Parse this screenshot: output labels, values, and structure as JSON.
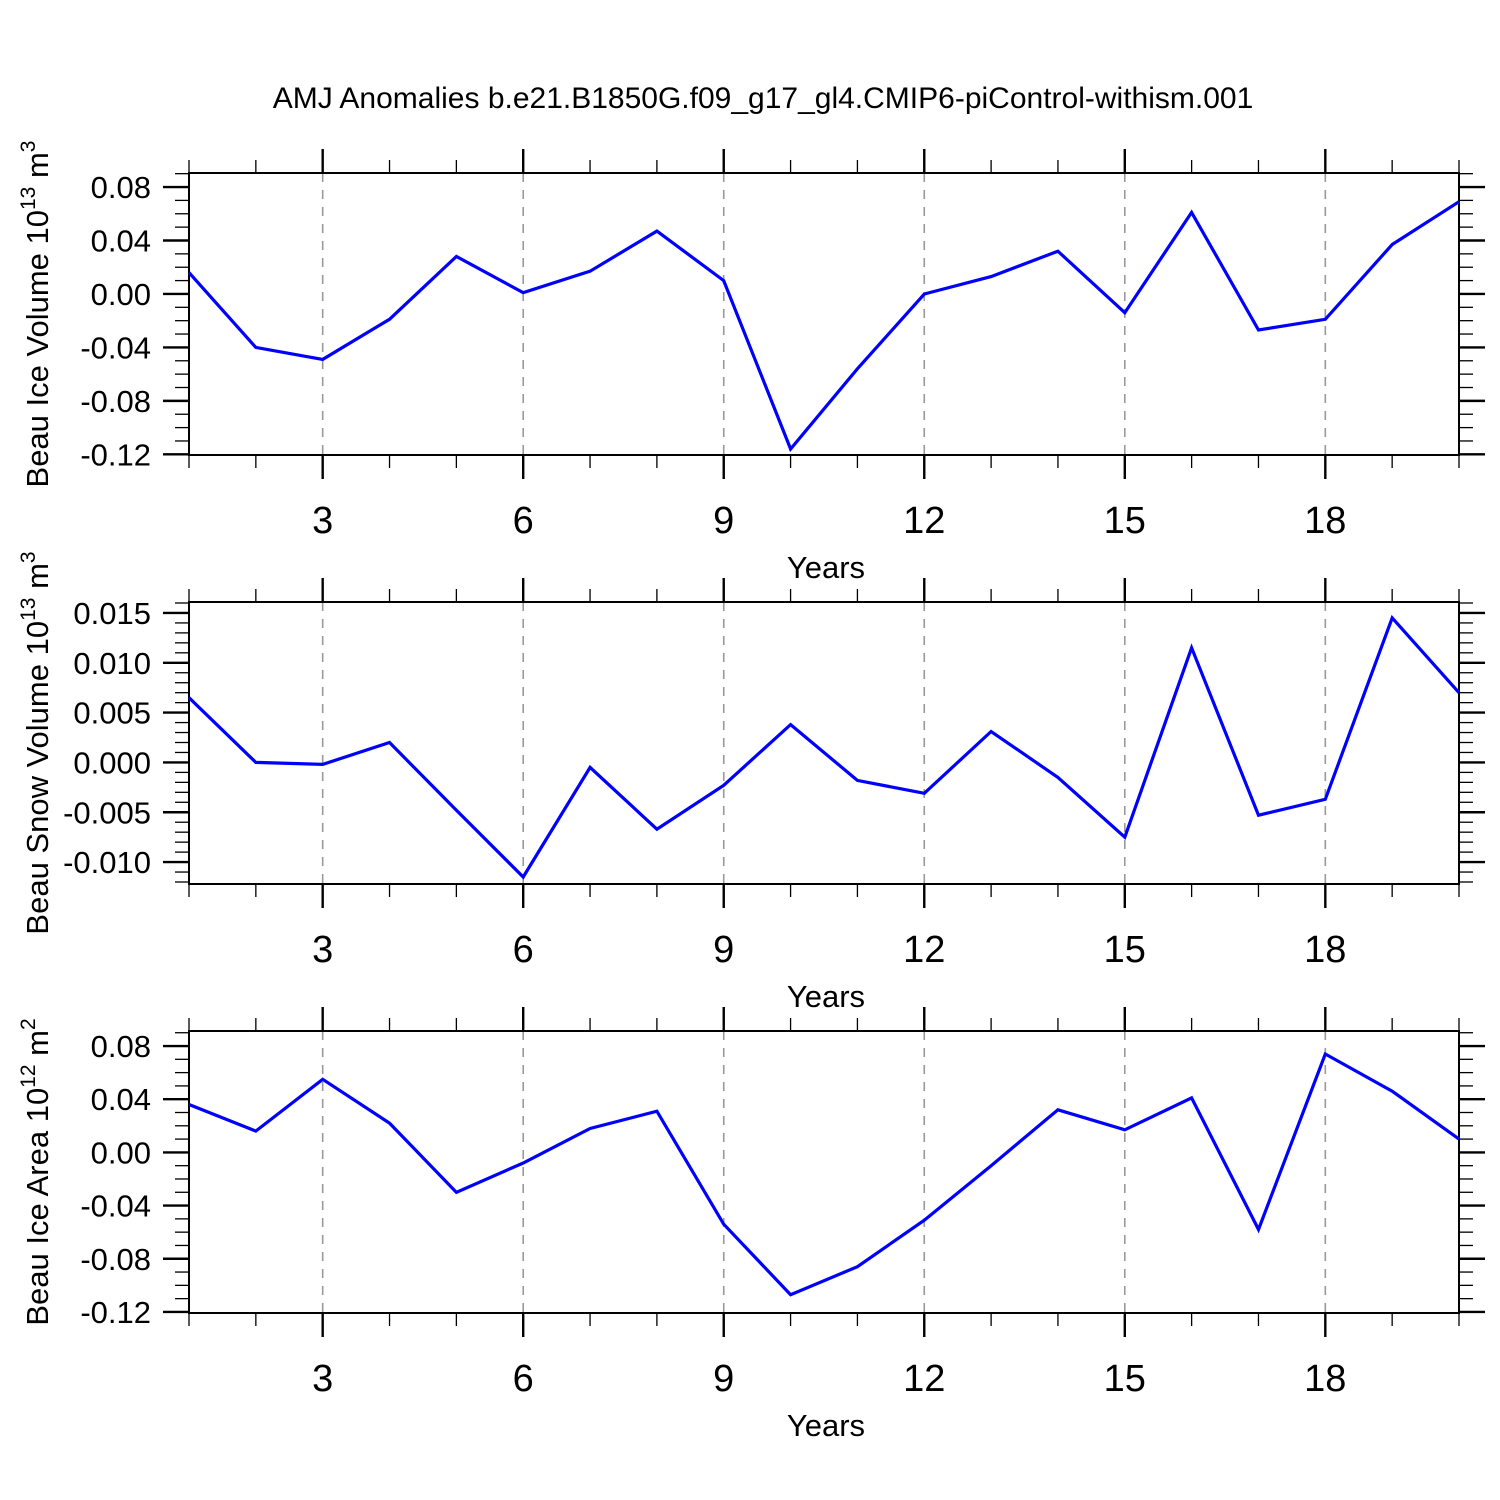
{
  "title": "AMJ Anomalies b.e21.B1850G.f09_g17_gl4.CMIP6-piControl-withism.001",
  "line_color": "#0000ff",
  "grid_color": "#999999",
  "axis_color": "#000000",
  "chart_data": [
    {
      "type": "line",
      "name": "beau-ice-volume",
      "ylabel": "Beau Ice Volume 10¹³ m³",
      "ylabel_parts": [
        {
          "t": "Beau Ice Volume 10",
          "sup": false
        },
        {
          "t": "13",
          "sup": true
        },
        {
          "t": " m",
          "sup": false
        },
        {
          "t": "3",
          "sup": true
        }
      ],
      "xlabel": "Years",
      "x": [
        1,
        2,
        3,
        4,
        5,
        6,
        7,
        8,
        9,
        10,
        11,
        12,
        13,
        14,
        15,
        16,
        17,
        18,
        19,
        20
      ],
      "values": [
        0.016,
        -0.04,
        -0.049,
        -0.019,
        0.028,
        0.001,
        0.017,
        0.047,
        0.01,
        -0.116,
        -0.056,
        0.0,
        0.013,
        0.032,
        -0.014,
        0.061,
        -0.027,
        -0.019,
        0.037,
        0.069
      ],
      "xlim": [
        1,
        20
      ],
      "x_major_ticks": [
        3,
        6,
        9,
        12,
        15,
        18
      ],
      "x_tick_labels": [
        "3",
        "6",
        "9",
        "12",
        "15",
        "18"
      ],
      "x_minor_step": 1,
      "ylim": [
        -0.1205,
        0.0905
      ],
      "ytick_values": [
        0.08,
        0.04,
        0.0,
        -0.04,
        -0.08,
        -0.12
      ],
      "ytick_labels": [
        "0.08",
        "0.04",
        "0.00",
        "-0.04",
        "-0.08",
        "-0.12"
      ],
      "y_minor_step": 0.01,
      "grid": "vertical-dashed"
    },
    {
      "type": "line",
      "name": "beau-snow-volume",
      "ylabel": "Beau Snow Volume 10¹³ m³",
      "ylabel_parts": [
        {
          "t": "Beau Snow Volume 10",
          "sup": false
        },
        {
          "t": "13",
          "sup": true
        },
        {
          "t": " m",
          "sup": false
        },
        {
          "t": "3",
          "sup": true
        }
      ],
      "xlabel": "Years",
      "x": [
        1,
        2,
        3,
        4,
        5,
        6,
        7,
        8,
        9,
        10,
        11,
        12,
        13,
        14,
        15,
        16,
        17,
        18,
        19,
        20
      ],
      "values": [
        0.0065,
        0.0,
        -0.0002,
        0.002,
        -0.0048,
        -0.0115,
        -0.0005,
        -0.0067,
        -0.0023,
        0.0038,
        -0.0018,
        -0.0031,
        0.0031,
        -0.0015,
        -0.0075,
        0.0115,
        -0.0053,
        -0.0037,
        0.0145,
        0.007
      ],
      "xlim": [
        1,
        20
      ],
      "x_major_ticks": [
        3,
        6,
        9,
        12,
        15,
        18
      ],
      "x_tick_labels": [
        "3",
        "6",
        "9",
        "12",
        "15",
        "18"
      ],
      "x_minor_step": 1,
      "ylim": [
        -0.0122,
        0.0161
      ],
      "ytick_values": [
        0.015,
        0.01,
        0.005,
        0.0,
        -0.005,
        -0.01
      ],
      "ytick_labels": [
        "0.015",
        "0.010",
        "0.005",
        "0.000",
        "-0.005",
        "-0.010"
      ],
      "y_minor_step": 0.001,
      "grid": "vertical-dashed"
    },
    {
      "type": "line",
      "name": "beau-ice-area",
      "ylabel": "Beau Ice Area 10¹² m²",
      "ylabel_parts": [
        {
          "t": "Beau Ice Area 10",
          "sup": false
        },
        {
          "t": "12",
          "sup": true
        },
        {
          "t": " m",
          "sup": false
        },
        {
          "t": "2",
          "sup": true
        }
      ],
      "xlabel": "Years",
      "x": [
        1,
        2,
        3,
        4,
        5,
        6,
        7,
        8,
        9,
        10,
        11,
        12,
        13,
        14,
        15,
        16,
        17,
        18,
        19,
        20
      ],
      "values": [
        0.036,
        0.016,
        0.055,
        0.022,
        -0.03,
        -0.008,
        0.018,
        0.031,
        -0.054,
        -0.107,
        -0.086,
        -0.051,
        -0.01,
        0.032,
        0.017,
        0.041,
        -0.058,
        0.074,
        0.046,
        0.01
      ],
      "xlim": [
        1,
        20
      ],
      "x_major_ticks": [
        3,
        6,
        9,
        12,
        15,
        18
      ],
      "x_tick_labels": [
        "3",
        "6",
        "9",
        "12",
        "15",
        "18"
      ],
      "x_minor_step": 1,
      "ylim": [
        -0.1208,
        0.0913
      ],
      "ytick_values": [
        0.08,
        0.04,
        0.0,
        -0.04,
        -0.08,
        -0.12
      ],
      "ytick_labels": [
        "0.08",
        "0.04",
        "0.00",
        "-0.04",
        "-0.08",
        "-0.12"
      ],
      "y_minor_step": 0.01,
      "grid": "vertical-dashed"
    }
  ]
}
